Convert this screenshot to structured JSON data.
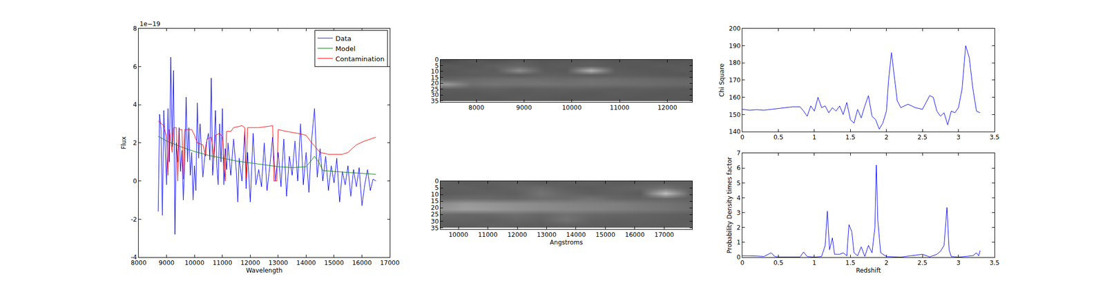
{
  "chart_data": [
    {
      "type": "line",
      "xlabel": "Wavelength",
      "ylabel": "Flux",
      "annotations": [
        {
          "text": "1e−19"
        }
      ],
      "xlim": [
        8000,
        17000
      ],
      "xticks": [
        8000,
        9000,
        10000,
        11000,
        12000,
        13000,
        14000,
        15000,
        16000,
        17000
      ],
      "ylim": [
        -4,
        8
      ],
      "yticks": [
        -4,
        -2,
        0,
        2,
        4,
        6,
        8
      ],
      "grid": false,
      "legend": "upper right",
      "series": [
        {
          "name": "Data",
          "color": "#0000ff",
          "x": [
            8700,
            8750,
            8800,
            8850,
            8900,
            8950,
            9000,
            9050,
            9100,
            9150,
            9200,
            9250,
            9300,
            9350,
            9400,
            9450,
            9500,
            9550,
            9600,
            9650,
            9700,
            9750,
            9800,
            9850,
            9900,
            9950,
            10000,
            10050,
            10100,
            10150,
            10200,
            10300,
            10400,
            10500,
            10550,
            10600,
            10650,
            10700,
            10750,
            10800,
            10850,
            10900,
            10950,
            11000,
            11050,
            11100,
            11150,
            11200,
            11300,
            11400,
            11500,
            11550,
            11600,
            11700,
            11800,
            11850,
            11900,
            12000,
            12100,
            12200,
            12300,
            12400,
            12500,
            12600,
            12700,
            12800,
            12900,
            13000,
            13100,
            13200,
            13300,
            13400,
            13500,
            13600,
            13700,
            13800,
            13900,
            14000,
            14100,
            14200,
            14300,
            14400,
            14500,
            14600,
            14700,
            14800,
            14900,
            15000,
            15100,
            15200,
            15300,
            15400,
            15500,
            15600,
            15700,
            15800,
            15900,
            16000,
            16100,
            16200,
            16300,
            16400,
            16500
          ],
          "values": [
            -1.6,
            3.5,
            2.7,
            -1.8,
            3.7,
            1.5,
            -0.2,
            3.8,
            1.0,
            6.5,
            1.8,
            5.8,
            -2.8,
            2.0,
            1.0,
            2.8,
            0.5,
            1.6,
            -1.0,
            0.9,
            4.4,
            1.0,
            2.8,
            0.3,
            1.5,
            -1.0,
            0.8,
            -0.5,
            4.1,
            1.2,
            3.0,
            0.2,
            1.8,
            2.5,
            1.1,
            5.4,
            0.3,
            1.5,
            3.7,
            0.8,
            -0.2,
            3.0,
            1.0,
            3.8,
            -0.2,
            1.7,
            0.6,
            2.0,
            0.3,
            2.2,
            0.5,
            -1.1,
            1.2,
            0.0,
            2.6,
            -0.4,
            1.5,
            -1.1,
            2.5,
            -0.2,
            0.6,
            -0.3,
            2.0,
            -0.5,
            0.8,
            2.3,
            0.0,
            1.5,
            -0.3,
            2.2,
            -0.8,
            1.3,
            0.3,
            2.1,
            0.0,
            3.0,
            -0.2,
            1.5,
            -0.6,
            2.2,
            3.8,
            0.2,
            1.7,
            0.0,
            1.3,
            -0.5,
            0.8,
            -0.1,
            1.2,
            -1.1,
            0.5,
            -0.2,
            0.8,
            -0.8,
            0.6,
            -0.3,
            0.7,
            -1.3,
            -0.2,
            0.6,
            -0.5,
            0.1,
            0.0
          ]
        },
        {
          "name": "Model",
          "color": "#008000",
          "x": [
            8700,
            9000,
            9500,
            10000,
            10500,
            11000,
            11500,
            12000,
            12500,
            13000,
            13500,
            14000,
            14200,
            14300,
            14450,
            14600,
            15000,
            15500,
            16000,
            16500
          ],
          "values": [
            2.35,
            2.1,
            1.8,
            1.55,
            1.35,
            1.2,
            1.05,
            0.95,
            0.85,
            0.75,
            0.7,
            0.75,
            1.1,
            1.3,
            1.0,
            0.55,
            0.5,
            0.45,
            0.4,
            0.35
          ]
        },
        {
          "name": "Contamination",
          "color": "#ff0000",
          "x": [
            8700,
            8900,
            9000,
            9050,
            9100,
            9200,
            9250,
            9350,
            9400,
            9450,
            9550,
            9600,
            9650,
            9900,
            10000,
            10100,
            10300,
            10400,
            10450,
            10600,
            10700,
            10750,
            10900,
            11000,
            11100,
            11150,
            11300,
            11400,
            11700,
            11800,
            11850,
            11900,
            12300,
            12800,
            12850,
            12950,
            13000,
            13300,
            13700,
            14000,
            14200,
            14500,
            14800,
            15300,
            15500,
            15800,
            16100,
            16500
          ],
          "values": [
            3.15,
            2.9,
            2.3,
            0.3,
            2.7,
            1.5,
            2.8,
            2.8,
            0.0,
            2.7,
            2.7,
            0.1,
            2.7,
            2.7,
            2.4,
            2.0,
            1.9,
            1.3,
            2.2,
            2.3,
            1.2,
            2.4,
            2.5,
            2.3,
            0.0,
            2.6,
            2.6,
            2.8,
            2.9,
            2.8,
            0.1,
            2.8,
            2.8,
            2.9,
            0.0,
            0.0,
            2.7,
            2.6,
            2.5,
            2.4,
            2.0,
            1.5,
            1.4,
            1.4,
            1.5,
            1.9,
            2.1,
            2.3
          ]
        }
      ]
    },
    {
      "type": "heatmap",
      "xlim": [
        7250,
        12520
      ],
      "xticks": [
        8000,
        9000,
        10000,
        11000,
        12000
      ],
      "ylim": [
        36,
        0
      ],
      "yticks": [
        0,
        5,
        10,
        15,
        20,
        25,
        30,
        35
      ],
      "zlim": [
        0,
        1
      ],
      "x": [
        7400,
        7900,
        8400,
        8900,
        9400,
        9900,
        10400,
        10900,
        11400,
        11900,
        12400
      ],
      "y": [
        1,
        5,
        9,
        13,
        17,
        21,
        25,
        29,
        33
      ],
      "z": [
        [
          0.3,
          0.35,
          0.33,
          0.36,
          0.34,
          0.35,
          0.36,
          0.34,
          0.35,
          0.33,
          0.34
        ],
        [
          0.36,
          0.34,
          0.38,
          0.4,
          0.35,
          0.36,
          0.37,
          0.35,
          0.34,
          0.36,
          0.35
        ],
        [
          0.34,
          0.37,
          0.36,
          0.55,
          0.36,
          0.35,
          0.7,
          0.36,
          0.35,
          0.34,
          0.36
        ],
        [
          0.35,
          0.36,
          0.37,
          0.36,
          0.38,
          0.37,
          0.36,
          0.37,
          0.36,
          0.35,
          0.34
        ],
        [
          0.4,
          0.42,
          0.43,
          0.44,
          0.43,
          0.42,
          0.44,
          0.43,
          0.42,
          0.41,
          0.4
        ],
        [
          0.6,
          0.44,
          0.46,
          0.45,
          0.46,
          0.44,
          0.45,
          0.44,
          0.43,
          0.42,
          0.41
        ],
        [
          0.36,
          0.37,
          0.38,
          0.36,
          0.37,
          0.38,
          0.37,
          0.36,
          0.37,
          0.36,
          0.35
        ],
        [
          0.35,
          0.34,
          0.36,
          0.35,
          0.36,
          0.35,
          0.34,
          0.36,
          0.35,
          0.34,
          0.35
        ],
        [
          0.34,
          0.35,
          0.34,
          0.36,
          0.35,
          0.34,
          0.35,
          0.35,
          0.34,
          0.35,
          0.34
        ]
      ]
    },
    {
      "type": "heatmap",
      "xlabel": "Angstroms",
      "xlim": [
        9390,
        17950
      ],
      "xticks": [
        10000,
        11000,
        12000,
        13000,
        14000,
        15000,
        16000,
        17000
      ],
      "ylim": [
        36,
        0
      ],
      "yticks": [
        0,
        5,
        10,
        15,
        20,
        25,
        30,
        35
      ],
      "zlim": [
        0,
        1
      ],
      "x": [
        9400,
        10250,
        11100,
        11950,
        12800,
        13650,
        14500,
        15350,
        16200,
        17050,
        17900
      ],
      "y": [
        1,
        5,
        9,
        13,
        17,
        21,
        25,
        29,
        33
      ],
      "z": [
        [
          0.38,
          0.36,
          0.37,
          0.38,
          0.36,
          0.37,
          0.38,
          0.36,
          0.37,
          0.38,
          0.37
        ],
        [
          0.37,
          0.38,
          0.36,
          0.39,
          0.42,
          0.37,
          0.36,
          0.38,
          0.4,
          0.45,
          0.37
        ],
        [
          0.36,
          0.37,
          0.38,
          0.37,
          0.45,
          0.4,
          0.37,
          0.38,
          0.36,
          0.75,
          0.38
        ],
        [
          0.4,
          0.42,
          0.41,
          0.4,
          0.43,
          0.42,
          0.45,
          0.4,
          0.39,
          0.4,
          0.38
        ],
        [
          0.55,
          0.6,
          0.58,
          0.56,
          0.54,
          0.52,
          0.5,
          0.5,
          0.47,
          0.45,
          0.42
        ],
        [
          0.58,
          0.62,
          0.6,
          0.57,
          0.55,
          0.53,
          0.52,
          0.5,
          0.48,
          0.46,
          0.43
        ],
        [
          0.42,
          0.4,
          0.41,
          0.43,
          0.4,
          0.44,
          0.41,
          0.4,
          0.39,
          0.38,
          0.37
        ],
        [
          0.38,
          0.39,
          0.37,
          0.4,
          0.38,
          0.45,
          0.38,
          0.37,
          0.38,
          0.37,
          0.36
        ],
        [
          0.37,
          0.36,
          0.38,
          0.37,
          0.36,
          0.38,
          0.37,
          0.36,
          0.37,
          0.36,
          0.37
        ]
      ]
    },
    {
      "type": "line",
      "ylabel": "Chi Square",
      "color": "#0000ff",
      "xlim": [
        0,
        3.5
      ],
      "xticks": [
        0.0,
        0.5,
        1.0,
        1.5,
        2.0,
        2.5,
        3.0,
        3.5
      ],
      "ylim": [
        140,
        200
      ],
      "yticks": [
        140,
        150,
        160,
        170,
        180,
        190,
        200
      ],
      "x": [
        0,
        0.1,
        0.2,
        0.3,
        0.4,
        0.5,
        0.6,
        0.7,
        0.8,
        0.85,
        0.9,
        0.95,
        1.0,
        1.05,
        1.1,
        1.15,
        1.2,
        1.25,
        1.3,
        1.35,
        1.4,
        1.45,
        1.5,
        1.55,
        1.6,
        1.65,
        1.7,
        1.75,
        1.8,
        1.85,
        1.9,
        1.95,
        2.0,
        2.03,
        2.07,
        2.1,
        2.15,
        2.2,
        2.3,
        2.4,
        2.5,
        2.55,
        2.6,
        2.65,
        2.7,
        2.75,
        2.8,
        2.85,
        2.9,
        2.95,
        3.0,
        3.05,
        3.1,
        3.15,
        3.2,
        3.25,
        3.3
      ],
      "values": [
        153,
        152.5,
        152.8,
        152.5,
        153,
        153.5,
        154,
        154.5,
        154.5,
        152,
        149,
        155,
        152,
        160,
        154,
        155,
        151,
        154,
        152,
        155,
        150,
        157,
        147,
        145,
        153,
        148,
        155,
        161,
        149,
        147,
        141.5,
        145,
        152,
        170,
        186,
        175,
        158,
        154,
        156,
        154,
        153,
        157,
        161,
        160,
        152,
        149,
        151,
        144,
        152,
        151,
        154,
        165,
        190,
        183,
        165,
        152,
        151
      ]
    },
    {
      "type": "line",
      "xlabel": "Redshift",
      "ylabel": "Probability Density times factor",
      "color": "#0000ff",
      "xlim": [
        0,
        3.5
      ],
      "xticks": [
        0.0,
        0.5,
        1.0,
        1.5,
        2.0,
        2.5,
        3.0,
        3.5
      ],
      "ylim": [
        0,
        7
      ],
      "yticks": [
        0,
        1,
        2,
        3,
        4,
        5,
        6,
        7
      ],
      "x": [
        0,
        0.1,
        0.2,
        0.3,
        0.4,
        0.45,
        0.5,
        0.8,
        0.85,
        0.9,
        1.0,
        1.1,
        1.15,
        1.18,
        1.21,
        1.25,
        1.28,
        1.35,
        1.4,
        1.45,
        1.48,
        1.52,
        1.55,
        1.6,
        1.65,
        1.7,
        1.75,
        1.8,
        1.84,
        1.86,
        1.88,
        1.92,
        2.0,
        2.2,
        2.5,
        2.6,
        2.7,
        2.75,
        2.8,
        2.84,
        2.87,
        2.9,
        3.0,
        3.2,
        3.25,
        3.28,
        3.3
      ],
      "values": [
        0.1,
        0.1,
        0.08,
        0.05,
        0.3,
        0.05,
        0.02,
        0.02,
        0.35,
        0.05,
        0.01,
        0.05,
        0.8,
        3.1,
        0.5,
        1.3,
        0.2,
        0.2,
        0.3,
        0.1,
        2.2,
        1.7,
        0.3,
        0.1,
        0.7,
        0.05,
        0.8,
        0.3,
        2.0,
        6.2,
        2.5,
        0.3,
        0.05,
        0.01,
        0.2,
        0.02,
        0.2,
        0.4,
        0.8,
        3.35,
        0.5,
        0.05,
        0.01,
        0.1,
        0.3,
        0.1,
        0.45
      ]
    }
  ]
}
